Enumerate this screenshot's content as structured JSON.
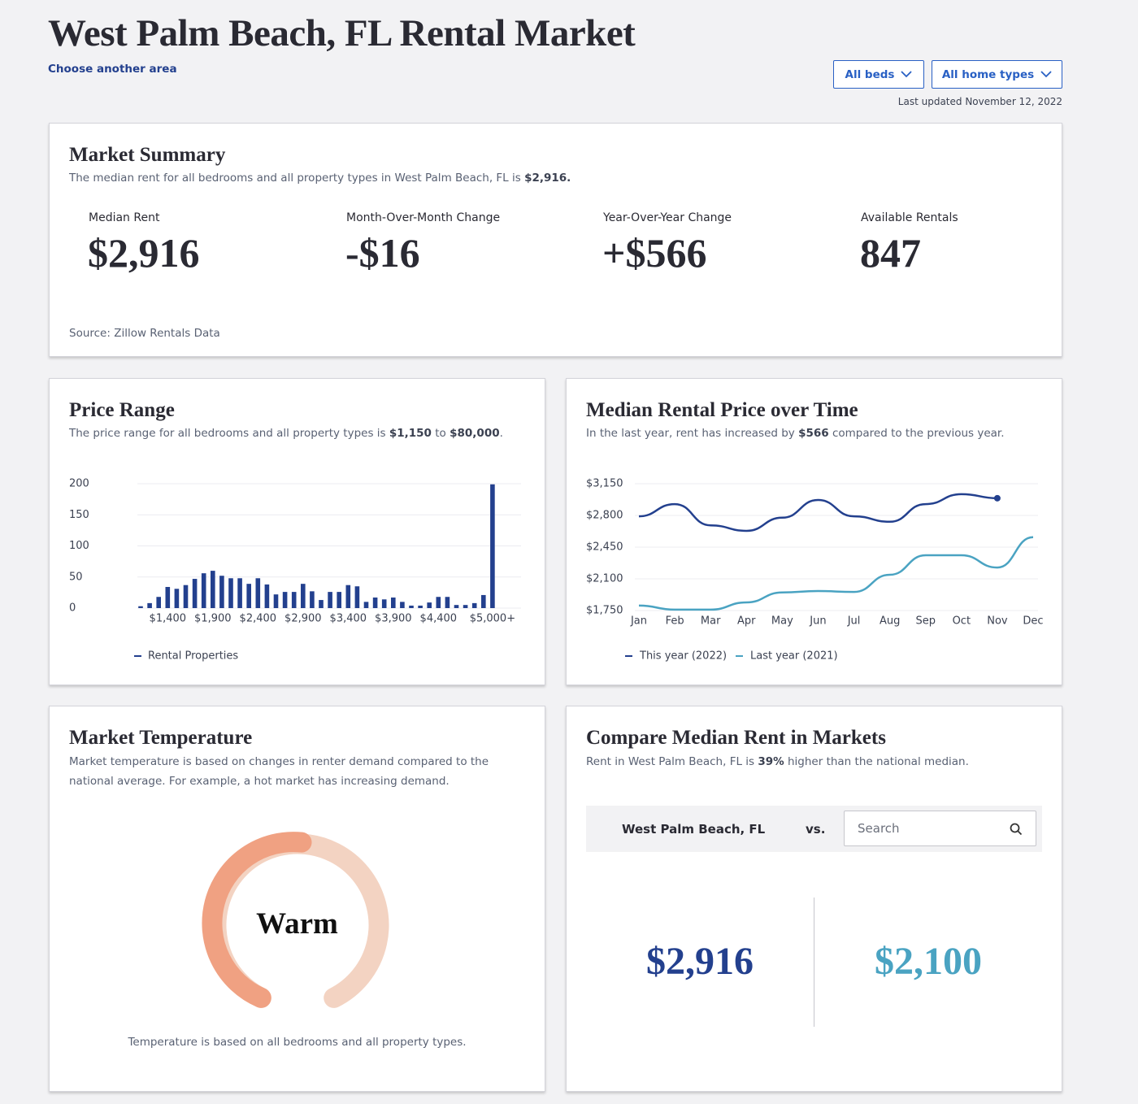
{
  "header": {
    "title": "West Palm Beach, FL Rental Market",
    "link": "Choose another area",
    "filters": [
      "All beds",
      "All home types"
    ],
    "updated": "Last updated November 12, 2022"
  },
  "summary": {
    "title": "Market Summary",
    "subtitle": [
      "The median rent for all bedrooms and all property types in West Palm Beach, FL is",
      "$2,916."
    ],
    "stats": [
      {
        "label": "Median Rent",
        "value": "$2,916"
      },
      {
        "label": "Month-Over-Month Change",
        "value": "-$16"
      },
      {
        "label": "Year-Over-Year Change",
        "value": "+$566"
      },
      {
        "label": "Available Rentals",
        "value": "847"
      }
    ],
    "source": "Source: Zillow Rentals Data"
  },
  "price_range": {
    "title": "Price Range",
    "subtitle": [
      "The price range for all bedrooms and all property types is",
      "$1,150",
      "to",
      "$80,000",
      "."
    ],
    "chart": {
      "type": "bar",
      "categories": [
        null,
        null,
        null,
        "$1,400",
        null,
        null,
        null,
        null,
        "$1,900",
        null,
        null,
        null,
        null,
        "$2,400",
        null,
        null,
        null,
        null,
        "$2,900",
        null,
        null,
        null,
        null,
        "$3,400",
        null,
        null,
        null,
        null,
        "$3,900",
        null,
        null,
        null,
        null,
        "$4,400",
        null,
        null,
        null,
        null,
        null,
        "$5,000+"
      ],
      "series": [
        {
          "name": "Rental Properties",
          "color": "#23408e",
          "values": [
            3,
            8,
            18,
            34,
            31,
            37,
            47,
            56,
            60,
            52,
            48,
            48,
            39,
            48,
            38,
            22,
            26,
            26,
            39,
            27,
            13,
            26,
            26,
            37,
            35,
            10,
            17,
            14,
            17,
            10,
            4,
            4,
            9,
            18,
            18,
            5,
            5,
            8,
            21,
            199
          ]
        }
      ],
      "ylim": [
        0,
        200
      ],
      "yticks": [
        0,
        50,
        100,
        150,
        200
      ],
      "grid": true
    }
  },
  "median_over_time": {
    "title": "Median Rental Price over Time",
    "subtitle": [
      "In the last year, rent has increased by",
      "$566",
      "compared to the previous year."
    ],
    "chart": {
      "type": "line",
      "categories": [
        "Jan",
        "Feb",
        "Mar",
        "Apr",
        "May",
        "Jun",
        "Jul",
        "Aug",
        "Sep",
        "Oct",
        "Nov",
        "Dec"
      ],
      "series": [
        {
          "name": "This year (2022)",
          "color": "#23408e",
          "values": [
            2790,
            2925,
            2690,
            2630,
            2775,
            2970,
            2790,
            2730,
            2925,
            3035,
            2990,
            null
          ]
        },
        {
          "name": "Last year (2021)",
          "color": "#4aa3c2",
          "values": [
            1805,
            1760,
            1760,
            1840,
            1950,
            1965,
            1955,
            2145,
            2360,
            2360,
            2225,
            2560
          ]
        }
      ],
      "ylim": [
        1750,
        3150
      ],
      "yticks": [
        {
          "value": 1750,
          "label": "$1,750"
        },
        {
          "value": 2100,
          "label": "$2,100"
        },
        {
          "value": 2450,
          "label": "$2,450"
        },
        {
          "value": 2800,
          "label": "$2,800"
        },
        {
          "value": 3150,
          "label": "$3,150"
        }
      ],
      "grid": true
    }
  },
  "temperature": {
    "title": "Market Temperature",
    "subtitle": "Market temperature is based on changes in renter demand compared to the national average. For example, a hot market has increasing demand.",
    "label": "Warm",
    "note": "Temperature is based on all bedrooms and all property types."
  },
  "compare": {
    "title": "Compare Median Rent in Markets",
    "subtitle": [
      "Rent in West Palm Beach, FL is",
      "39%",
      "higher than the national median."
    ],
    "area": "West Palm Beach, FL",
    "vs": "vs.",
    "search": "Search",
    "values": [
      "$2,916",
      "$2,100"
    ]
  }
}
